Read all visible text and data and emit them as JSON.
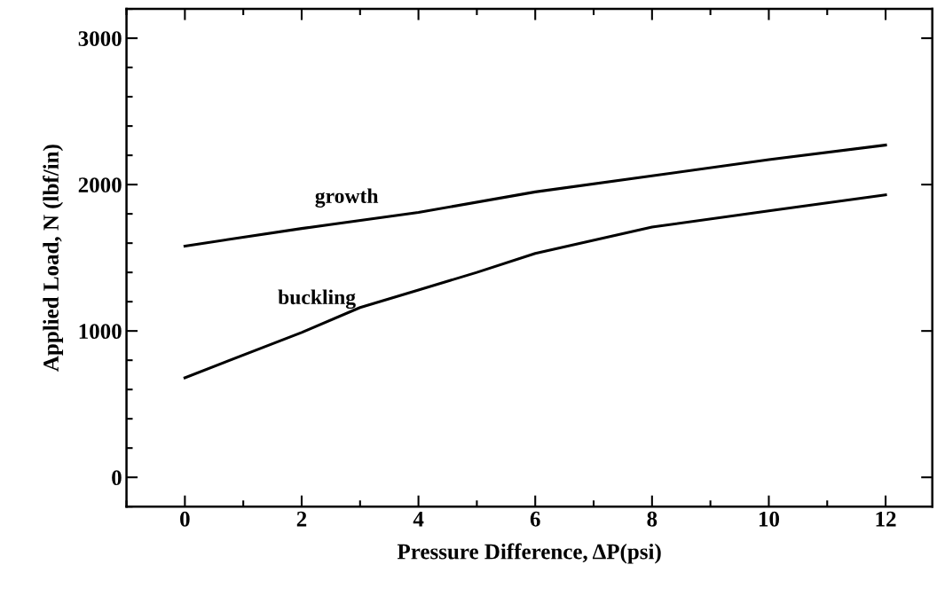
{
  "chart_data": {
    "type": "line",
    "xlabel": "Pressure Difference, ΔP(psi)",
    "ylabel": "Applied Load, N (lbf/in)",
    "xlim": [
      -1,
      12.8
    ],
    "xticks": [
      0,
      2,
      4,
      6,
      8,
      10,
      12
    ],
    "ylim": [
      -200,
      3200
    ],
    "yticks": [
      0,
      1000,
      2000,
      3000
    ],
    "grid": false,
    "legend": false,
    "marker": "none",
    "line_style": "solid",
    "series": [
      {
        "name": "growth",
        "color": "#000000",
        "x": [
          0,
          2,
          4,
          6,
          8,
          10,
          12
        ],
        "values": [
          1580,
          1700,
          1810,
          1950,
          2060,
          2170,
          2270
        ]
      },
      {
        "name": "buckling",
        "color": "#000000",
        "x": [
          0,
          2,
          3,
          4,
          5,
          6,
          8,
          10,
          12
        ],
        "values": [
          680,
          990,
          1160,
          1280,
          1400,
          1530,
          1710,
          1820,
          1930
        ]
      }
    ]
  }
}
